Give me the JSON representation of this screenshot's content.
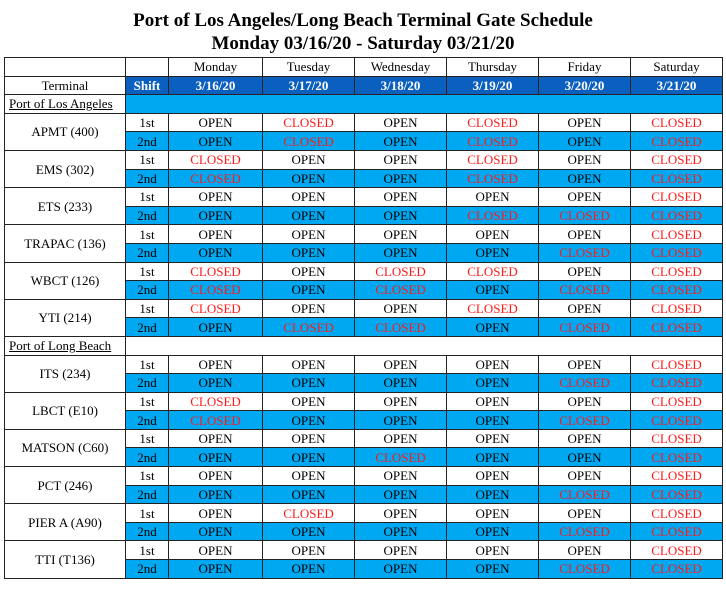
{
  "title_line1": "Port of Los Angeles/Long Beach Terminal Gate Schedule",
  "title_line2": "Monday 03/16/20 - Saturday 03/21/20",
  "headers": {
    "terminal": "Terminal",
    "shift": "Shift",
    "days": [
      "Monday",
      "Tuesday",
      "Wednesday",
      "Thursday",
      "Friday",
      "Saturday"
    ],
    "dates": [
      "3/16/20",
      "3/17/20",
      "3/18/20",
      "3/19/20",
      "3/20/20",
      "3/21/20"
    ]
  },
  "colors": {
    "header": "#0a5fbf",
    "alt_row": "#00a8f2",
    "closed": "#ff1a1a"
  },
  "sections": [
    {
      "name": "Port of Los Angeles",
      "highlight": true,
      "terminals": [
        {
          "name": "APMT (400)",
          "shifts": [
            {
              "label": "1st",
              "status": [
                "OPEN",
                "CLOSED",
                "OPEN",
                "CLOSED",
                "OPEN",
                "CLOSED"
              ]
            },
            {
              "label": "2nd",
              "status": [
                "OPEN",
                "CLOSED",
                "OPEN",
                "CLOSED",
                "OPEN",
                "CLOSED"
              ]
            }
          ]
        },
        {
          "name": "EMS (302)",
          "shifts": [
            {
              "label": "1st",
              "status": [
                "CLOSED",
                "OPEN",
                "OPEN",
                "CLOSED",
                "OPEN",
                "CLOSED"
              ]
            },
            {
              "label": "2nd",
              "status": [
                "CLOSED",
                "OPEN",
                "OPEN",
                "CLOSED",
                "OPEN",
                "CLOSED"
              ]
            }
          ]
        },
        {
          "name": "ETS (233)",
          "shifts": [
            {
              "label": "1st",
              "status": [
                "OPEN",
                "OPEN",
                "OPEN",
                "OPEN",
                "OPEN",
                "CLOSED"
              ]
            },
            {
              "label": "2nd",
              "status": [
                "OPEN",
                "OPEN",
                "OPEN",
                "CLOSED",
                "CLOSED",
                "CLOSED"
              ]
            }
          ]
        },
        {
          "name": "TRAPAC (136)",
          "shifts": [
            {
              "label": "1st",
              "status": [
                "OPEN",
                "OPEN",
                "OPEN",
                "OPEN",
                "OPEN",
                "CLOSED"
              ]
            },
            {
              "label": "2nd",
              "status": [
                "OPEN",
                "OPEN",
                "OPEN",
                "OPEN",
                "CLOSED",
                "CLOSED"
              ]
            }
          ]
        },
        {
          "name": "WBCT (126)",
          "shifts": [
            {
              "label": "1st",
              "status": [
                "CLOSED",
                "OPEN",
                "CLOSED",
                "CLOSED",
                "OPEN",
                "CLOSED"
              ]
            },
            {
              "label": "2nd",
              "status": [
                "CLOSED",
                "OPEN",
                "CLOSED",
                "OPEN",
                "CLOSED",
                "CLOSED"
              ]
            }
          ]
        },
        {
          "name": "YTI (214)",
          "shifts": [
            {
              "label": "1st",
              "status": [
                "CLOSED",
                "OPEN",
                "OPEN",
                "CLOSED",
                "OPEN",
                "CLOSED"
              ]
            },
            {
              "label": "2nd",
              "status": [
                "OPEN",
                "CLOSED",
                "CLOSED",
                "OPEN",
                "CLOSED",
                "CLOSED"
              ]
            }
          ]
        }
      ]
    },
    {
      "name": "Port of Long Beach",
      "highlight": false,
      "terminals": [
        {
          "name": "ITS (234)",
          "shifts": [
            {
              "label": "1st",
              "status": [
                "OPEN",
                "OPEN",
                "OPEN",
                "OPEN",
                "OPEN",
                "CLOSED"
              ]
            },
            {
              "label": "2nd",
              "status": [
                "OPEN",
                "OPEN",
                "OPEN",
                "OPEN",
                "CLOSED",
                "CLOSED"
              ]
            }
          ]
        },
        {
          "name": "LBCT (E10)",
          "shifts": [
            {
              "label": "1st",
              "status": [
                "CLOSED",
                "OPEN",
                "OPEN",
                "OPEN",
                "OPEN",
                "CLOSED"
              ]
            },
            {
              "label": "2nd",
              "status": [
                "CLOSED",
                "OPEN",
                "OPEN",
                "OPEN",
                "CLOSED",
                "CLOSED"
              ]
            }
          ]
        },
        {
          "name": "MATSON (C60)",
          "shifts": [
            {
              "label": "1st",
              "status": [
                "OPEN",
                "OPEN",
                "OPEN",
                "OPEN",
                "OPEN",
                "CLOSED"
              ]
            },
            {
              "label": "2nd",
              "status": [
                "OPEN",
                "OPEN",
                "CLOSED",
                "OPEN",
                "OPEN",
                "CLOSED"
              ]
            }
          ]
        },
        {
          "name": "PCT (246)",
          "shifts": [
            {
              "label": "1st",
              "status": [
                "OPEN",
                "OPEN",
                "OPEN",
                "OPEN",
                "OPEN",
                "CLOSED"
              ]
            },
            {
              "label": "2nd",
              "status": [
                "OPEN",
                "OPEN",
                "OPEN",
                "OPEN",
                "CLOSED",
                "CLOSED"
              ]
            }
          ]
        },
        {
          "name": "PIER A (A90)",
          "shifts": [
            {
              "label": "1st",
              "status": [
                "OPEN",
                "CLOSED",
                "OPEN",
                "OPEN",
                "OPEN",
                "CLOSED"
              ]
            },
            {
              "label": "2nd",
              "status": [
                "OPEN",
                "OPEN",
                "OPEN",
                "OPEN",
                "CLOSED",
                "CLOSED"
              ]
            }
          ]
        },
        {
          "name": "TTI (T136)",
          "shifts": [
            {
              "label": "1st",
              "status": [
                "OPEN",
                "OPEN",
                "OPEN",
                "OPEN",
                "OPEN",
                "CLOSED"
              ]
            },
            {
              "label": "2nd",
              "status": [
                "OPEN",
                "OPEN",
                "OPEN",
                "OPEN",
                "CLOSED",
                "CLOSED"
              ]
            }
          ]
        }
      ]
    }
  ]
}
